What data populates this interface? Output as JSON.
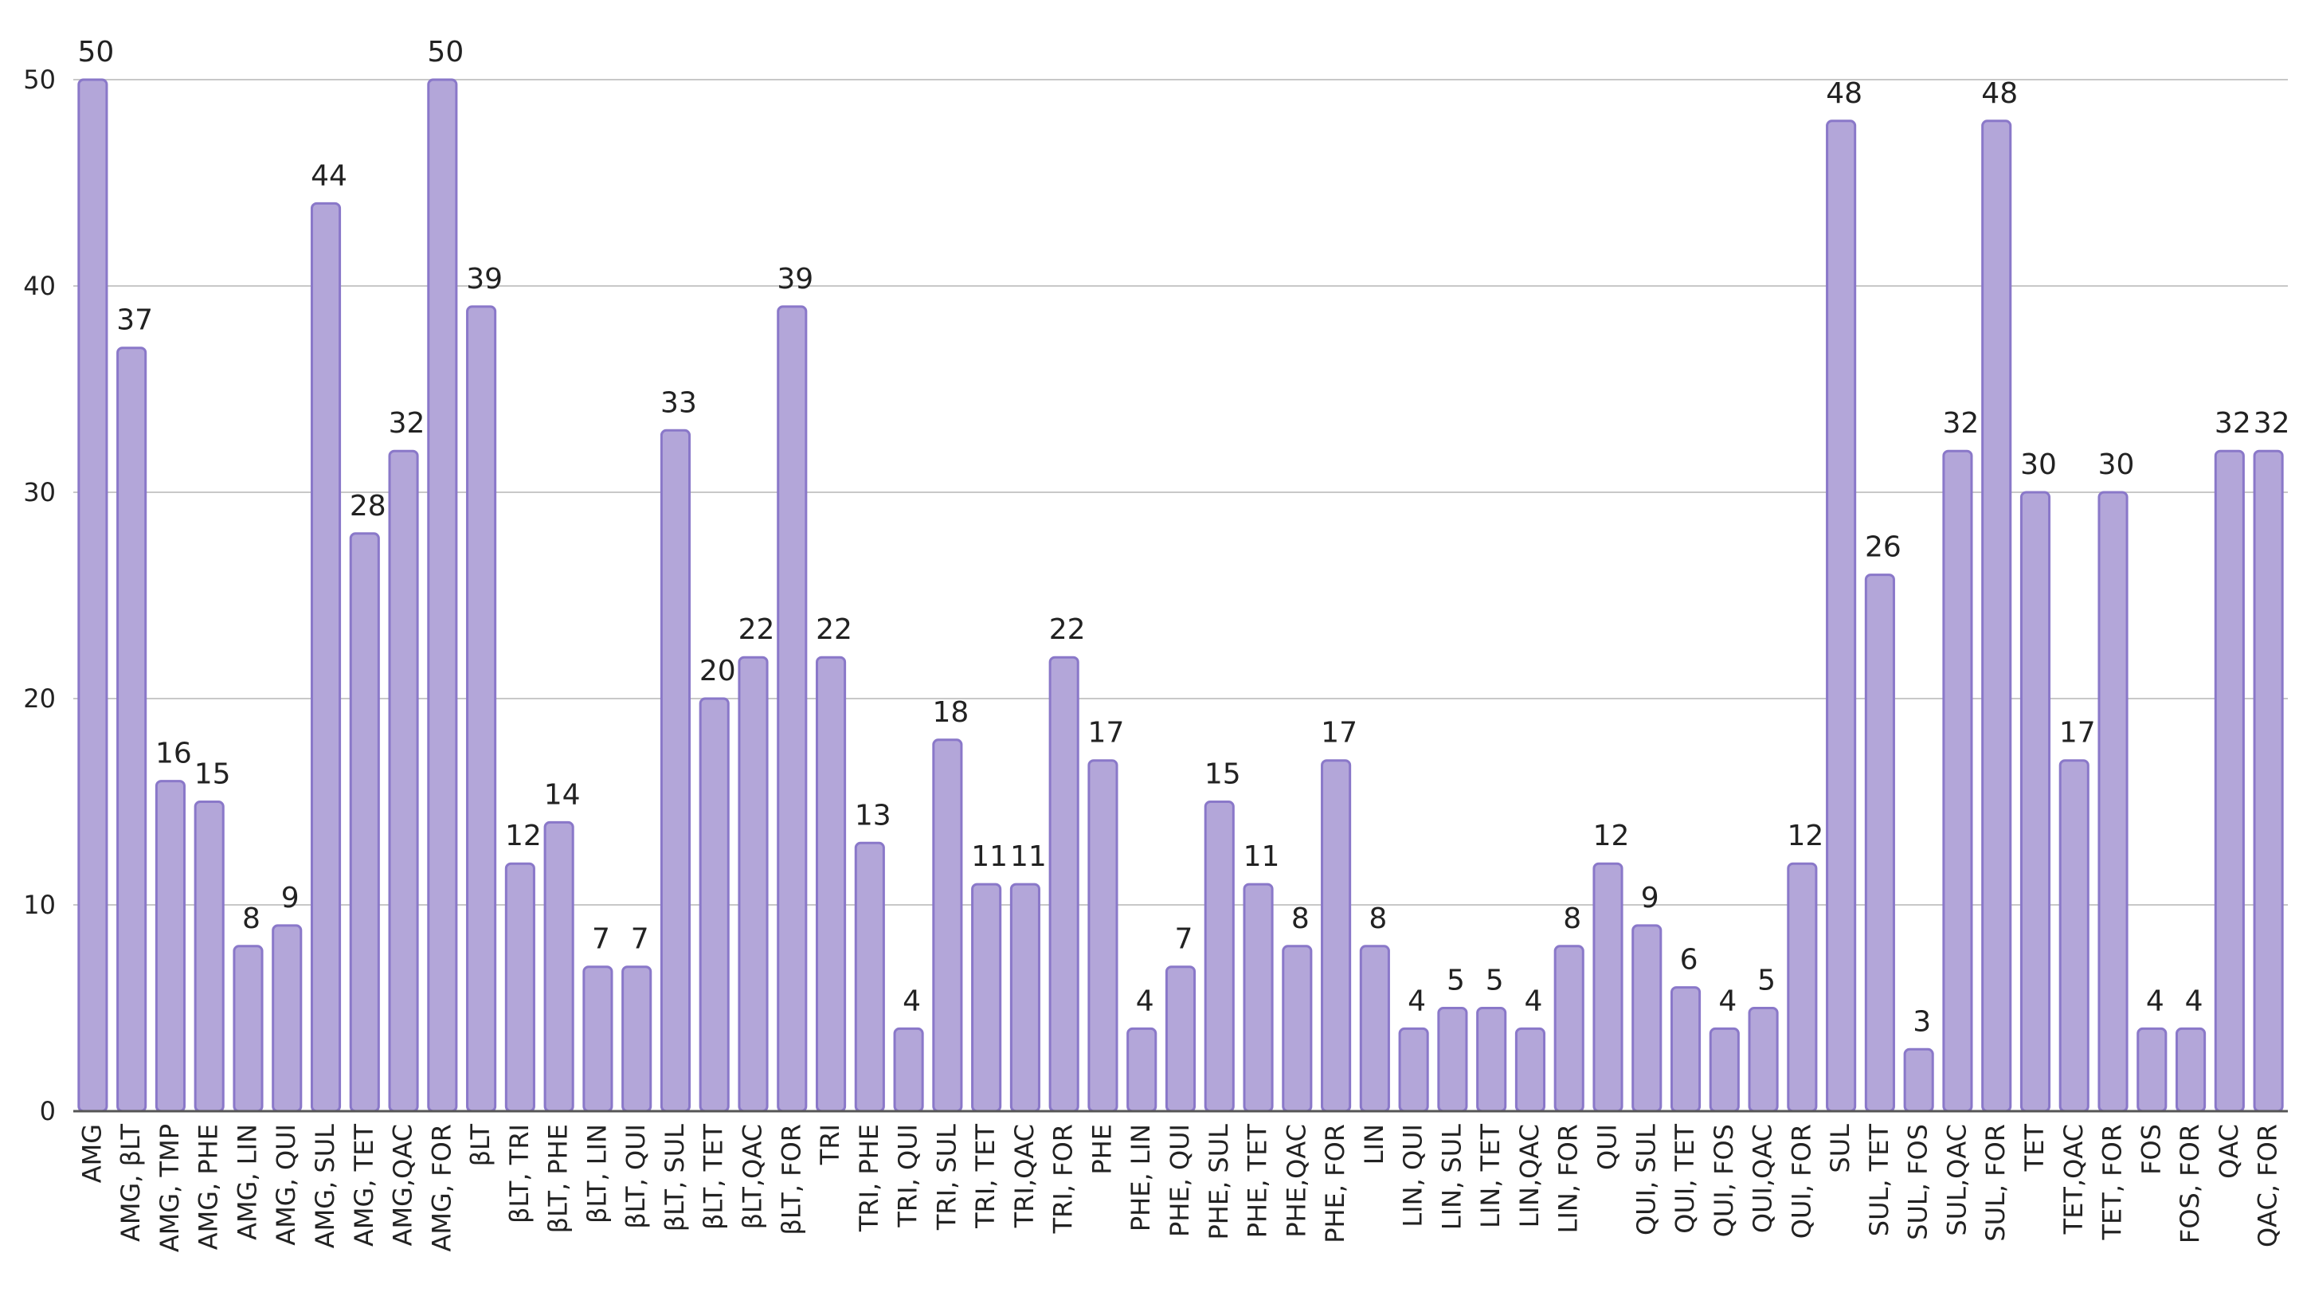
{
  "chart_data": {
    "type": "bar",
    "title": "",
    "xlabel": "",
    "ylabel": "",
    "ylim": [
      0,
      50
    ],
    "yticks": [
      "0",
      "10",
      "20",
      "30",
      "40",
      "50"
    ],
    "grid": true,
    "bar_color": "#b3a6d9",
    "bar_edge_color": "#8a78c9",
    "categories": [
      "AMG",
      "AMG, βLT",
      "AMG, TMP",
      "AMG, PHE",
      "AMG, LIN",
      "AMG, QUI",
      "AMG, SUL",
      "AMG, TET",
      "AMG,QAC",
      "AMG, FOR",
      "βLT",
      "βLT, TRI",
      "βLT, PHE",
      "βLT, LIN",
      "βLT, QUI",
      "βLT, SUL",
      "βLT, TET",
      "βLT,QAC",
      "βLT, FOR",
      "TRI",
      "TRI, PHE",
      "TRI, QUI",
      "TRI, SUL",
      "TRI, TET",
      "TRI,QAC",
      "TRI, FOR",
      "PHE",
      "PHE, LIN",
      "PHE, QUI",
      "PHE, SUL",
      "PHE, TET",
      "PHE,QAC",
      "PHE, FOR",
      "LIN",
      "LIN, QUI",
      "LIN, SUL",
      "LIN, TET",
      "LIN,QAC",
      "LIN, FOR",
      "QUI",
      "QUI, SUL",
      "QUI, TET",
      "QUI, FOS",
      "QUI,QAC",
      "QUI, FOR",
      "SUL",
      "SUL, TET",
      "SUL, FOS",
      "SUL,QAC",
      "SUL, FOR",
      "TET",
      "TET,QAC",
      "TET, FOR",
      "FOS",
      "FOS, FOR",
      "QAC",
      "QAC, FOR"
    ],
    "values": [
      50,
      37,
      16,
      15,
      8,
      9,
      44,
      28,
      32,
      50,
      39,
      12,
      14,
      7,
      7,
      33,
      20,
      22,
      39,
      22,
      13,
      4,
      18,
      11,
      11,
      22,
      17,
      4,
      7,
      15,
      11,
      8,
      17,
      8,
      4,
      5,
      5,
      4,
      8,
      12,
      9,
      6,
      4,
      5,
      12,
      48,
      26,
      3,
      32,
      48,
      30,
      17,
      30,
      4,
      4,
      32,
      32
    ]
  }
}
